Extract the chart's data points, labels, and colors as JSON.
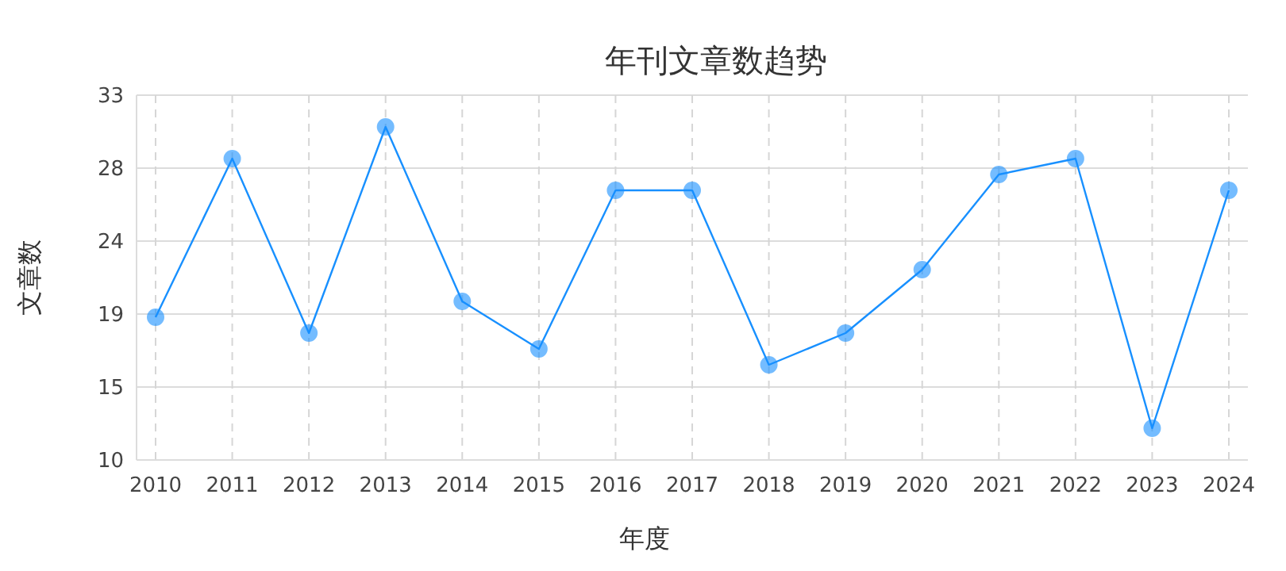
{
  "chart_data": {
    "type": "line",
    "title": "年刊文章数趋势",
    "xlabel": "年度",
    "ylabel": "文章数",
    "categories": [
      "2010",
      "2011",
      "2012",
      "2013",
      "2014",
      "2015",
      "2016",
      "2017",
      "2018",
      "2019",
      "2020",
      "2021",
      "2022",
      "2023",
      "2024"
    ],
    "series": [
      {
        "color": "#1890ff",
        "values": [
          19,
          29,
          18,
          31,
          20,
          17,
          27,
          27,
          16,
          18,
          22,
          28,
          29,
          12,
          27
        ]
      }
    ],
    "ylim": [
      10,
      33
    ],
    "yticks": [
      10,
      {
        "value": 14.6,
        "label": "15"
      },
      {
        "value": 19.2,
        "label": "19"
      },
      {
        "value": 23.8,
        "label": "24"
      },
      {
        "value": 28.4,
        "label": "28"
      },
      33
    ],
    "grid": true,
    "marker": "circle"
  }
}
